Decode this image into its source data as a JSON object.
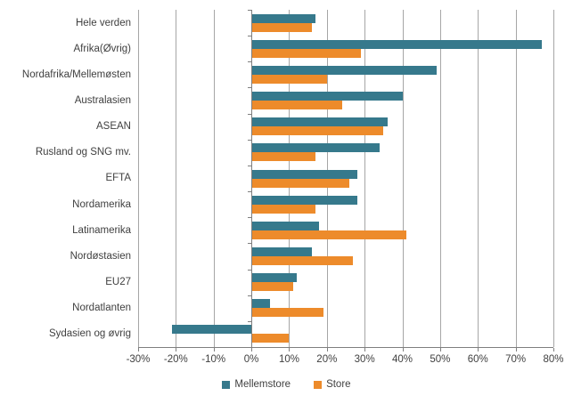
{
  "chart_data": {
    "type": "bar",
    "orientation": "horizontal",
    "title": "",
    "xlabel": "",
    "ylabel": "",
    "categories": [
      "Hele verden",
      "Afrika(Øvrig)",
      "Nordafrika/Mellemøsten",
      "Australasien",
      "ASEAN",
      "Rusland og SNG mv.",
      "EFTA",
      "Nordamerika",
      "Latinamerika",
      "Nordøstasien",
      "EU27",
      "Nordatlanten",
      "Sydasien og øvrig"
    ],
    "series": [
      {
        "name": "Mellemstore",
        "color": "#36798c",
        "values": [
          17,
          77,
          49,
          40,
          36,
          34,
          28,
          28,
          18,
          16,
          12,
          5,
          -21
        ]
      },
      {
        "name": "Store",
        "color": "#ed8b2b",
        "values": [
          16,
          29,
          20,
          24,
          35,
          17,
          26,
          17,
          41,
          27,
          11,
          19,
          10
        ]
      }
    ],
    "xlim": [
      -30,
      80
    ],
    "tick_step": 10,
    "tick_labels": [
      "-30%",
      "-20%",
      "-10%",
      "0%",
      "10%",
      "20%",
      "30%",
      "40%",
      "50%",
      "60%",
      "70%",
      "80%"
    ],
    "grid": true,
    "legend_position": "bottom",
    "colors": {
      "gridline": "#a6a6a6",
      "axis": "#7f7f7f",
      "text": "#3f3f3f",
      "background": "#ffffff"
    }
  }
}
